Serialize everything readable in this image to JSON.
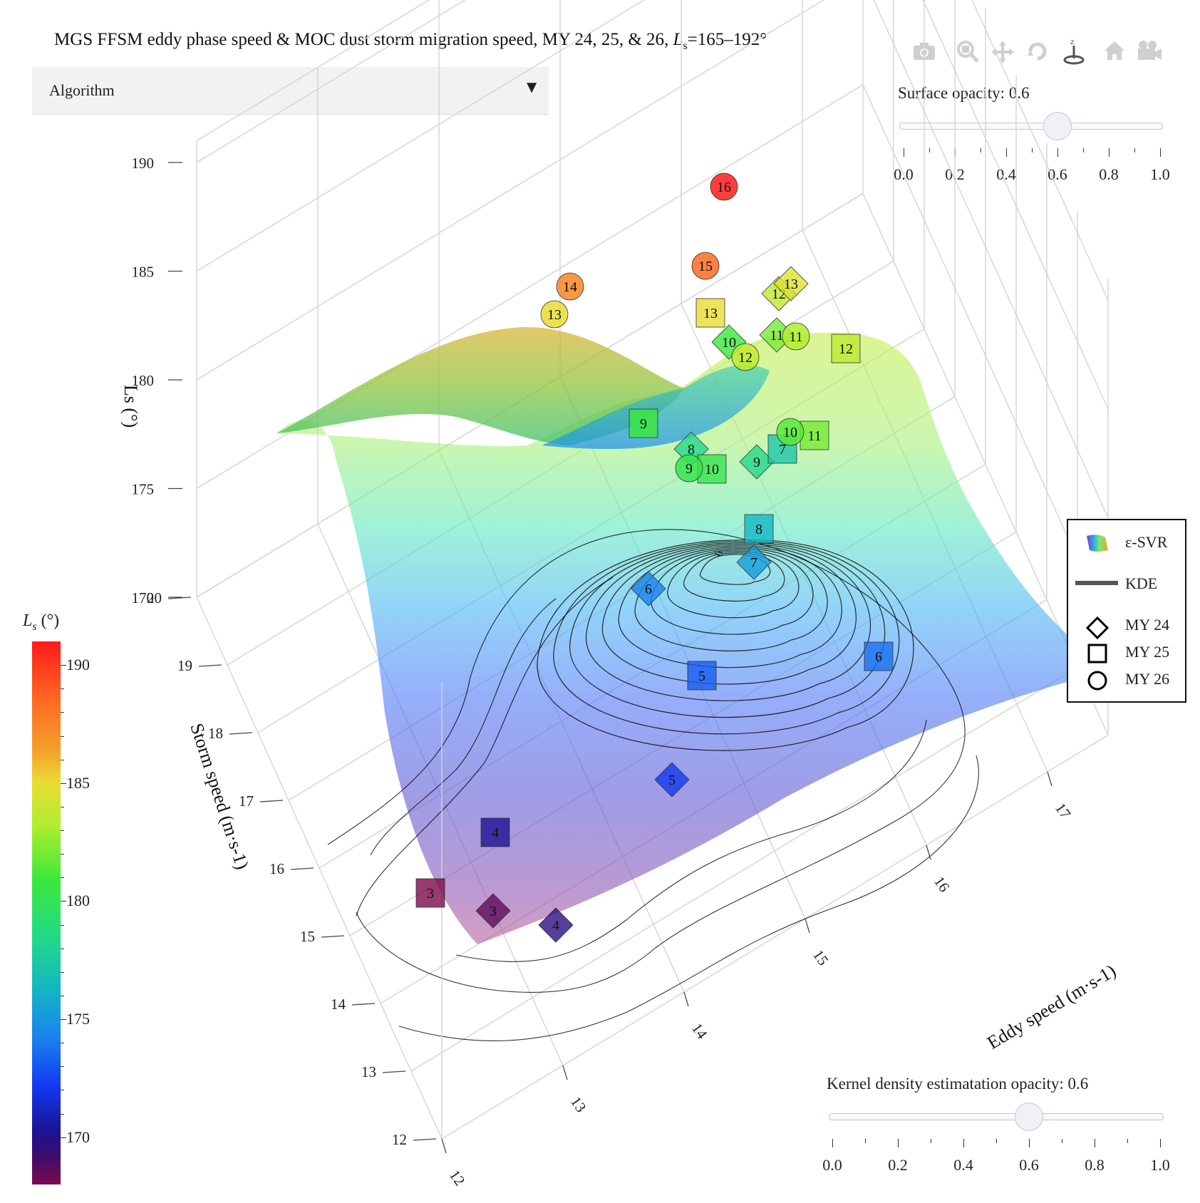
{
  "title": {
    "main": "MGS FFSM eddy phase speed & MOC dust storm migration speed, MY 24, 25, & 26, ",
    "ls": "L",
    "ls_sub": "s",
    "range": "=165–192°"
  },
  "dropdown": {
    "label": "Algorithm",
    "arrow": "▼"
  },
  "modebar": {
    "icons": [
      "camera-icon",
      "zoom-icon",
      "pan-icon",
      "orbit-icon",
      "turntable-icon",
      "home-icon",
      "video-camera-icon"
    ]
  },
  "surface_slider": {
    "label": "Surface opacity: 0.6",
    "value": 0.6,
    "ticks": [
      "0.0",
      "0.2",
      "0.4",
      "0.6",
      "0.8",
      "1.0"
    ]
  },
  "kde_slider": {
    "label": "Kernel density estimatation opacity: 0.6",
    "value": 0.6,
    "ticks": [
      "0.0",
      "0.2",
      "0.4",
      "0.6",
      "0.8",
      "1.0"
    ]
  },
  "legend": {
    "items": [
      {
        "name": "ε-SVR",
        "symbol": "surface"
      },
      {
        "name": "KDE",
        "symbol": "line"
      },
      {
        "name": "MY 24",
        "symbol": "diamond"
      },
      {
        "name": "MY 25",
        "symbol": "square"
      },
      {
        "name": "MY 26",
        "symbol": "circle"
      }
    ]
  },
  "colorbar": {
    "title_symbol": "L",
    "title_sub": "s",
    "title_unit": " (°)",
    "ticks": [
      "190",
      "185",
      "180",
      "175",
      "170"
    ],
    "range": [
      168,
      191
    ]
  },
  "chart_data": {
    "type": "scatter",
    "x_axis": {
      "label": "Eddy speed (m·s-1)",
      "ticks": [
        "12",
        "13",
        "14",
        "15",
        "16",
        "17"
      ],
      "range": [
        12,
        17.5
      ]
    },
    "y_axis": {
      "label": "Storm speed (m·s-1)",
      "ticks": [
        "12",
        "13",
        "14",
        "15",
        "16",
        "17",
        "18",
        "19",
        "20"
      ],
      "range": [
        12,
        20
      ]
    },
    "z_axis": {
      "label": "Ls (°)",
      "ticks": [
        "170",
        "175",
        "180",
        "185",
        "190"
      ],
      "range": [
        170,
        190
      ]
    },
    "kde_contour_label": "0",
    "series": [
      {
        "name": "MY 24",
        "symbol": "diamond",
        "points": [
          {
            "label": "3",
            "ls": 169.5
          },
          {
            "label": "4",
            "ls": 170.5
          },
          {
            "label": "5",
            "ls": 173
          },
          {
            "label": "6",
            "ls": 175
          },
          {
            "label": "7",
            "ls": 176
          },
          {
            "label": "8",
            "ls": 179
          },
          {
            "label": "9",
            "ls": 179
          },
          {
            "label": "10",
            "ls": 181
          },
          {
            "label": "11",
            "ls": 182
          },
          {
            "label": "12",
            "ls": 183.5
          },
          {
            "label": "13",
            "ls": 184.5
          }
        ]
      },
      {
        "name": "MY 25",
        "symbol": "square",
        "points": [
          {
            "label": "3",
            "ls": 169
          },
          {
            "label": "4",
            "ls": 171
          },
          {
            "label": "5",
            "ls": 174
          },
          {
            "label": "6",
            "ls": 174.5
          },
          {
            "label": "7",
            "ls": 178
          },
          {
            "label": "8",
            "ls": 177
          },
          {
            "label": "9",
            "ls": 181
          },
          {
            "label": "10",
            "ls": 180.5
          },
          {
            "label": "11",
            "ls": 182
          },
          {
            "label": "12",
            "ls": 183.5
          },
          {
            "label": "13",
            "ls": 185
          }
        ]
      },
      {
        "name": "MY 26",
        "symbol": "circle",
        "points": [
          {
            "label": "9",
            "ls": 180.5
          },
          {
            "label": "10",
            "ls": 181.5
          },
          {
            "label": "11",
            "ls": 183
          },
          {
            "label": "12",
            "ls": 183.5
          },
          {
            "label": "13",
            "ls": 185
          },
          {
            "label": "14",
            "ls": 187
          },
          {
            "label": "15",
            "ls": 188
          },
          {
            "label": "16",
            "ls": 190
          }
        ]
      }
    ]
  }
}
